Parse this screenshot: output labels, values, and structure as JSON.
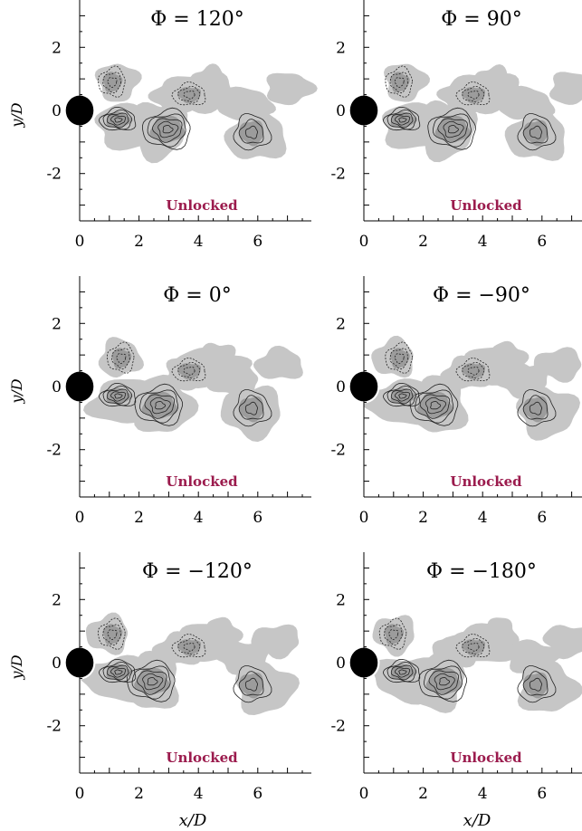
{
  "colors": {
    "contour_fill": "#c6c6c6",
    "contour_fill_dark": "#8e8e8e",
    "contour_line": "#222222",
    "status_text": "#9b1b4d",
    "axis": "#000000"
  },
  "chart_data": {
    "type": "contour",
    "shared": {
      "xlabel": "x/D",
      "ylabel": "y/D",
      "xlim": [
        0,
        7.5
      ],
      "ylim": [
        -3.5,
        3.5
      ],
      "xticks": [
        0,
        2,
        4,
        6
      ],
      "yticks": [
        -2,
        0,
        2
      ],
      "xtick_labels": [
        "0",
        "2",
        "4",
        "6"
      ],
      "ytick_labels": [
        "-2",
        "0",
        "2"
      ],
      "status_label": "Unlocked",
      "cylinder": {
        "x": 0,
        "y": 0,
        "radius": 0.5
      }
    },
    "panels": [
      {
        "id": "phi-120",
        "title": "Φ = 120°",
        "phase_deg": 120
      },
      {
        "id": "phi-90",
        "title": "Φ = 90°",
        "phase_deg": 90
      },
      {
        "id": "phi-0",
        "title": "Φ = 0°",
        "phase_deg": 0
      },
      {
        "id": "phi-minus-90",
        "title": "Φ = −90°",
        "phase_deg": -90
      },
      {
        "id": "phi-minus-120",
        "title": "Φ = −120°",
        "phase_deg": -120
      },
      {
        "id": "phi-minus-180",
        "title": "Φ = −180°",
        "phase_deg": -180
      }
    ]
  }
}
